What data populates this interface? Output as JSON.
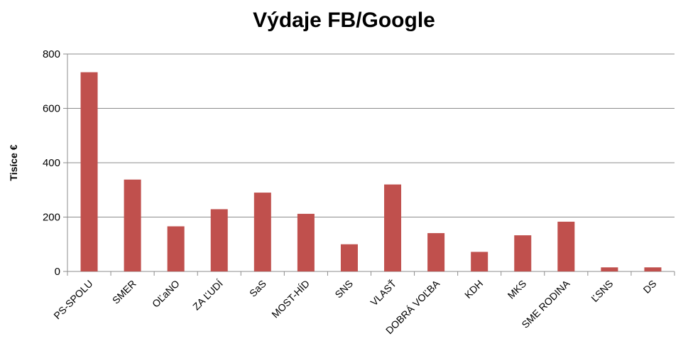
{
  "chart_data": {
    "type": "bar",
    "title": "Výdaje FB/Google",
    "xlabel": "",
    "ylabel": "Tisíce €",
    "ylim": [
      0,
      800
    ],
    "yticks": [
      0,
      200,
      400,
      600,
      800
    ],
    "grid": true,
    "legend": "none",
    "bar_color": "#c0504d",
    "categories": [
      "PS-SPOLU",
      "SMER",
      "OĽaNO",
      "ZA ĽUDÍ",
      "SaS",
      "MOST-HÍD",
      "SNS",
      "VLASŤ",
      "DOBRÁ VOĽBA",
      "KDH",
      "MKS",
      "SME RODINA",
      "ĽSNS",
      "DS"
    ],
    "values": [
      733,
      338,
      166,
      229,
      290,
      212,
      100,
      320,
      141,
      72,
      133,
      183,
      15,
      15
    ]
  }
}
